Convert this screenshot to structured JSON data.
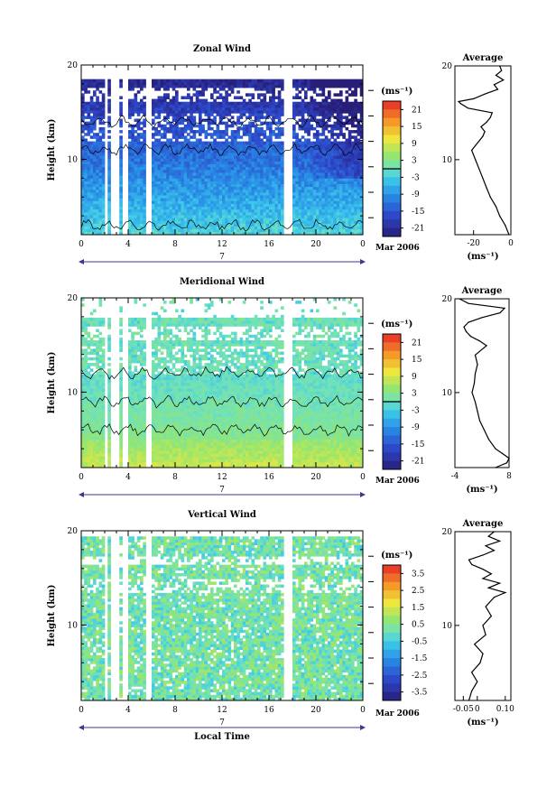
{
  "chart_data": [
    {
      "type": "heatmap",
      "title": "Zonal Wind",
      "ylabel": "Height (km)",
      "ylim": [
        2,
        20
      ],
      "yticks": [
        {
          "v": 10,
          "t": "10"
        },
        {
          "v": 20,
          "t": "20"
        }
      ],
      "xlim": [
        0,
        24
      ],
      "xticks": [
        {
          "v": 0,
          "t": "0"
        },
        {
          "v": 4,
          "t": "4"
        },
        {
          "v": 8,
          "t": "8"
        },
        {
          "v": 12,
          "t": "12"
        },
        {
          "v": 16,
          "t": "16"
        },
        {
          "v": 20,
          "t": "20"
        },
        {
          "v": 24,
          "t": "0"
        }
      ],
      "day_label": "7",
      "date_label": "Mar 2006",
      "colorbar": {
        "unit": "(ms⁻¹)",
        "ticks": [
          "21",
          "15",
          "9",
          "3",
          "-3",
          "-9",
          "-15",
          "-21"
        ],
        "min": -24,
        "max": 24,
        "zero_line": 0
      },
      "gaps": [
        [
          2.0,
          2.3
        ],
        [
          2.6,
          3.2
        ],
        [
          3.6,
          3.9
        ],
        [
          5.4,
          6.0
        ],
        [
          17.3,
          18.1
        ]
      ],
      "contour_label": "zero-wind contour",
      "profile": {
        "title": "Average",
        "xlabel": "(ms⁻¹)",
        "xlim": [
          -30,
          0
        ],
        "xticks": [
          {
            "v": -20,
            "t": "-20"
          },
          {
            "v": 0,
            "t": "0"
          }
        ],
        "height": [
          2,
          3,
          4,
          5,
          6,
          7,
          8,
          9,
          10,
          11,
          11.5,
          12,
          12.5,
          13,
          13.5,
          14,
          14.5,
          15,
          15.5,
          16,
          16.2,
          16.5,
          17,
          17.5,
          18,
          18.5,
          19,
          19.5,
          20
        ],
        "value": [
          -1,
          -3,
          -6,
          -8,
          -11,
          -13,
          -15,
          -17,
          -19,
          -21,
          -19,
          -17,
          -15,
          -14,
          -16,
          -13,
          -11,
          -10,
          -23,
          -27,
          -28,
          -20,
          -14,
          -7,
          -9,
          -4,
          -8,
          -5,
          -6
        ]
      }
    },
    {
      "type": "heatmap",
      "title": "Meridional Wind",
      "ylabel": "Height (km)",
      "ylim": [
        2,
        20
      ],
      "yticks": [
        {
          "v": 10,
          "t": "10"
        },
        {
          "v": 20,
          "t": "20"
        }
      ],
      "xlim": [
        0,
        24
      ],
      "xticks": [
        {
          "v": 0,
          "t": "0"
        },
        {
          "v": 4,
          "t": "4"
        },
        {
          "v": 8,
          "t": "8"
        },
        {
          "v": 12,
          "t": "12"
        },
        {
          "v": 16,
          "t": "16"
        },
        {
          "v": 20,
          "t": "20"
        },
        {
          "v": 24,
          "t": "0"
        }
      ],
      "day_label": "7",
      "date_label": "Mar 2006",
      "colorbar": {
        "unit": "(ms⁻¹)",
        "ticks": [
          "21",
          "15",
          "9",
          "3",
          "-3",
          "-9",
          "-15",
          "-21"
        ],
        "min": -24,
        "max": 24,
        "zero_line": 0
      },
      "gaps": [
        [
          2.0,
          2.3
        ],
        [
          2.6,
          3.2
        ],
        [
          3.6,
          3.9
        ],
        [
          5.4,
          6.0
        ],
        [
          17.3,
          18.1
        ]
      ],
      "profile": {
        "title": "Average",
        "xlabel": "(ms⁻¹)",
        "xlim": [
          -4,
          8
        ],
        "xticks": [
          {
            "v": -4,
            "t": "-4"
          },
          {
            "v": 8,
            "t": "8"
          }
        ],
        "height": [
          2,
          2.5,
          3,
          3.5,
          4,
          5,
          6,
          7,
          8,
          9,
          10,
          11,
          12,
          13,
          14,
          15,
          15.5,
          16,
          16.5,
          17,
          17.5,
          18,
          18.5,
          19,
          19.5,
          20
        ],
        "value": [
          5,
          7.5,
          8,
          6.5,
          5,
          3.5,
          2.5,
          1.5,
          1,
          0.5,
          -0.2,
          0.3,
          0.5,
          1,
          0.5,
          3,
          1.5,
          -0.5,
          -1.5,
          -2,
          -1,
          2,
          6,
          7,
          -1,
          -3
        ]
      }
    },
    {
      "type": "heatmap",
      "title": "Vertical Wind",
      "ylabel": "Height (km)",
      "ylim": [
        2,
        20
      ],
      "yticks": [
        {
          "v": 10,
          "t": "10"
        },
        {
          "v": 20,
          "t": "20"
        }
      ],
      "xlim": [
        0,
        24
      ],
      "xticks": [
        {
          "v": 0,
          "t": "0"
        },
        {
          "v": 4,
          "t": "4"
        },
        {
          "v": 8,
          "t": "8"
        },
        {
          "v": 12,
          "t": "12"
        },
        {
          "v": 16,
          "t": "16"
        },
        {
          "v": 20,
          "t": "20"
        },
        {
          "v": 24,
          "t": "0"
        }
      ],
      "day_label": "7",
      "date_label": "Mar 2006",
      "xlabel": "Local Time",
      "colorbar": {
        "unit": "(ms⁻¹)",
        "ticks": [
          "3.5",
          "2.5",
          "1.5",
          "0.5",
          "-0.5",
          "-1.5",
          "-2.5",
          "-3.5"
        ],
        "min": -4,
        "max": 4,
        "zero_line": null
      },
      "gaps": [
        [
          2.0,
          2.3
        ],
        [
          2.6,
          3.2
        ],
        [
          3.6,
          3.9
        ],
        [
          5.4,
          6.0
        ],
        [
          17.3,
          18.1
        ]
      ],
      "profile": {
        "title": "Average",
        "xlabel": "(ms⁻¹)",
        "xlim": [
          -0.08,
          0.12
        ],
        "xticks": [
          {
            "v": -0.05,
            "t": "-0.05"
          },
          {
            "v": 0,
            "t": "0"
          },
          {
            "v": 0.1,
            "t": "0.10"
          }
        ],
        "height": [
          2,
          3,
          4,
          5,
          6,
          7,
          8,
          9,
          10,
          11,
          12,
          13,
          13.5,
          14,
          14.5,
          15,
          15.5,
          16,
          16.5,
          17,
          17.5,
          18,
          18.5,
          19,
          19.5,
          20
        ],
        "value": [
          -0.03,
          -0.02,
          0.0,
          -0.02,
          0.01,
          0.02,
          -0.01,
          0.03,
          0.02,
          0.05,
          0.03,
          0.06,
          0.1,
          0.04,
          0.08,
          0.02,
          0.05,
          0.02,
          -0.02,
          -0.03,
          0.02,
          0.06,
          0.03,
          0.08,
          0.04,
          0.06
        ]
      }
    }
  ]
}
